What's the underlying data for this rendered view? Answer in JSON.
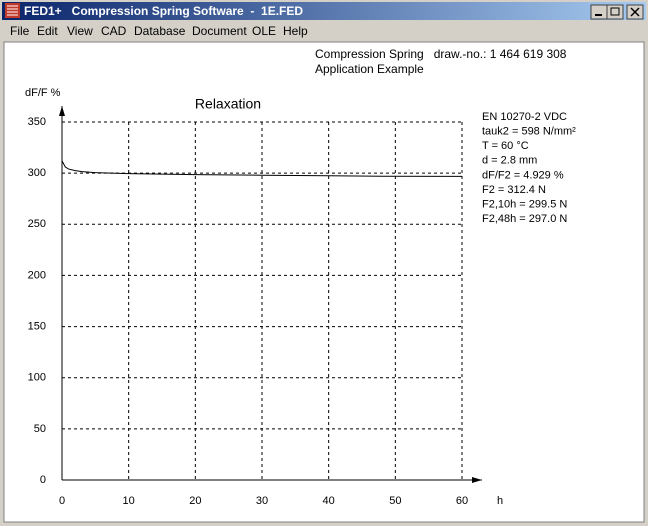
{
  "window": {
    "title": "FED1+   Compression Spring Software  -  1E.FED"
  },
  "menu": [
    "File",
    "Edit",
    "View",
    "CAD",
    "Database",
    "Document",
    "OLE",
    "Help"
  ],
  "header": {
    "line1": "Compression Spring   draw.-no.: 1 464 619 308",
    "line2": "Application Example"
  },
  "info": [
    "EN 10270-2 VDC",
    "tauk2 = 598 N/mm²",
    "T = 60 °C",
    "d = 2.8 mm",
    "dF/F2 = 4.929 %",
    "F2 = 312.4 N",
    "F2,10h = 299.5 N",
    "F2,48h = 297.0 N"
  ],
  "chart_data": {
    "type": "line",
    "title": "Relaxation",
    "y_label": "dF/F %",
    "x_label": "h",
    "x": [
      0,
      0.5,
      1,
      2,
      3,
      5,
      10,
      20,
      30,
      40,
      48,
      60
    ],
    "values": [
      312,
      306,
      304,
      302.5,
      301.5,
      300.5,
      299.5,
      298.5,
      298,
      297.5,
      297,
      296.8
    ],
    "color": "#000000",
    "xlim": [
      0,
      60
    ],
    "xticks": [
      0,
      10,
      20,
      30,
      40,
      50,
      60
    ],
    "ylim": [
      0,
      350
    ],
    "yticks": [
      0,
      50,
      100,
      150,
      200,
      250,
      300,
      350
    ],
    "grid": true
  }
}
